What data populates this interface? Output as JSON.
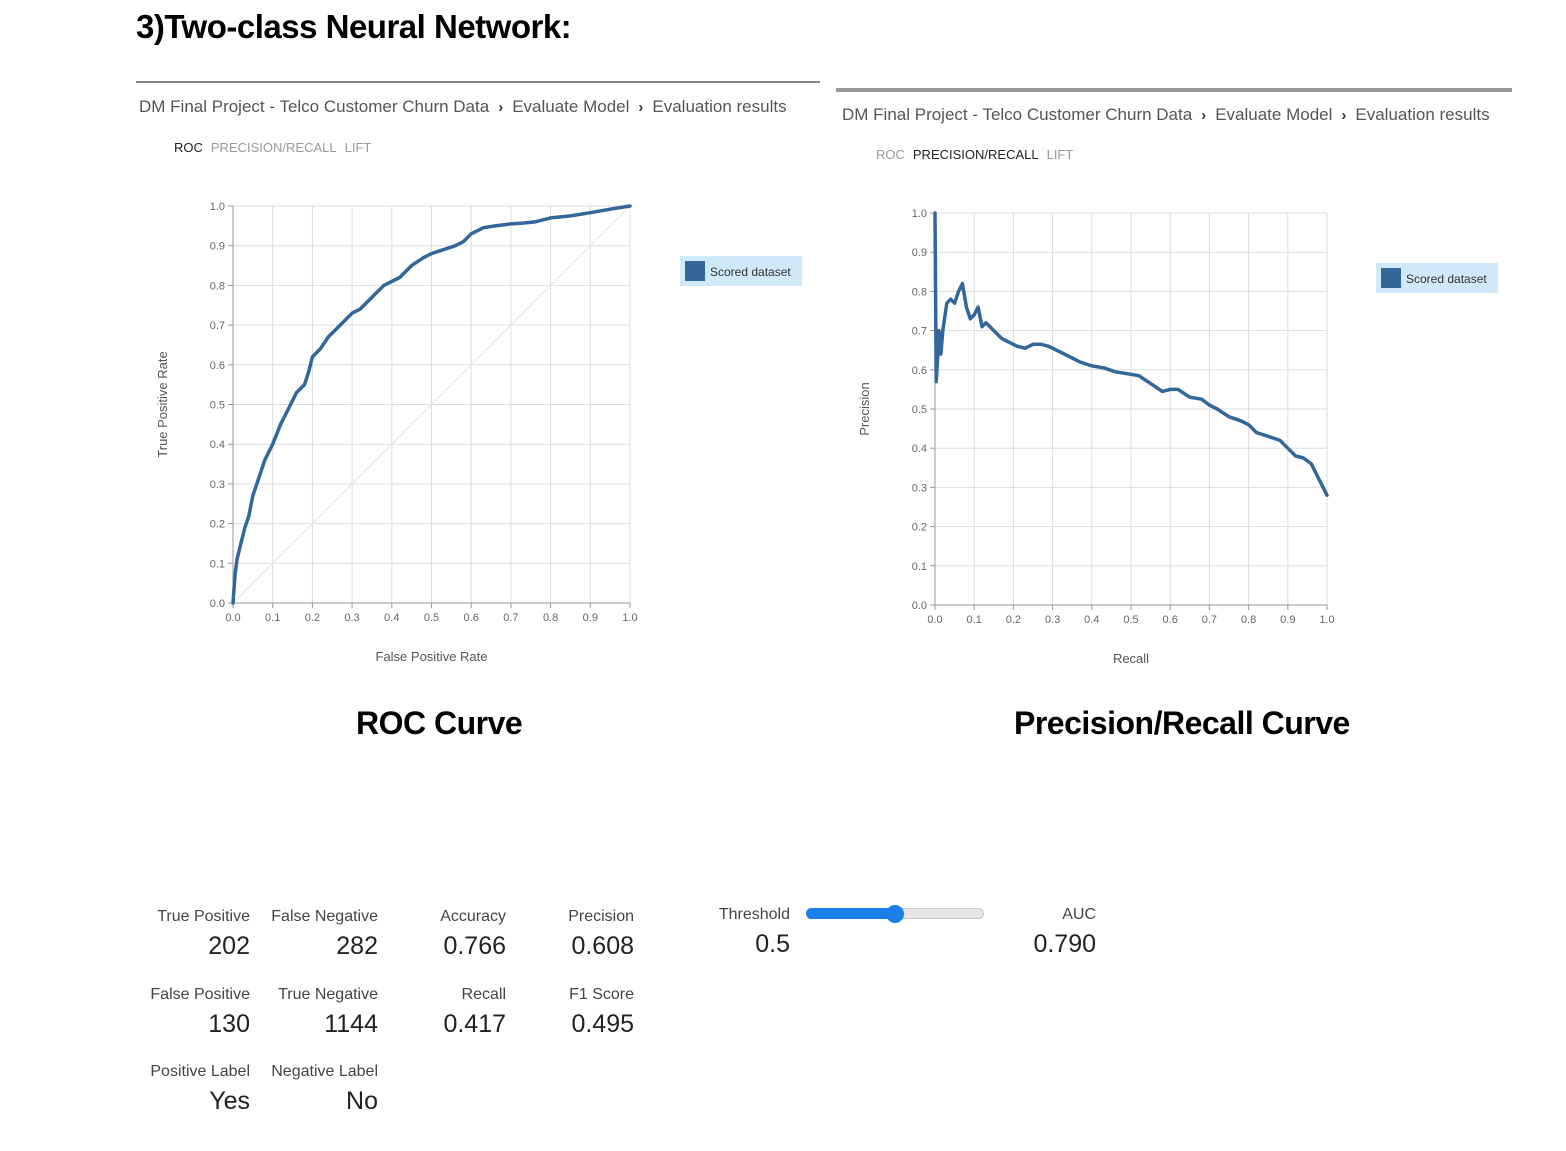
{
  "heading": "3)Two-class Neural Network:",
  "panels": [
    {
      "breadcrumb": [
        "DM Final Project - Telco Customer Churn Data",
        "Evaluate Model",
        "Evaluation results"
      ],
      "tabs": [
        "ROC",
        "PRECISION/RECALL",
        "LIFT"
      ],
      "active_tab": "ROC",
      "caption": "ROC Curve"
    },
    {
      "breadcrumb": [
        "DM Final Project - Telco Customer Churn Data",
        "Evaluate Model",
        "Evaluation results"
      ],
      "tabs": [
        "ROC",
        "PRECISION/RECALL",
        "LIFT"
      ],
      "active_tab": "PRECISION/RECALL",
      "caption": "Precision/Recall Curve"
    }
  ],
  "chart_data": [
    {
      "type": "line",
      "xlabel": "False Positive Rate",
      "ylabel": "True Positive Rate",
      "xlim": [
        0,
        1
      ],
      "ylim": [
        0,
        1
      ],
      "ticks": [
        "0.0",
        "0.1",
        "0.2",
        "0.3",
        "0.4",
        "0.5",
        "0.6",
        "0.7",
        "0.8",
        "0.9",
        "1.0"
      ],
      "grid": true,
      "legend_position": "top-right",
      "diagonal_reference": true,
      "series": [
        {
          "name": "Scored dataset",
          "color": "#336699",
          "x": [
            0.0,
            0.005,
            0.01,
            0.02,
            0.03,
            0.04,
            0.05,
            0.06,
            0.07,
            0.08,
            0.09,
            0.1,
            0.12,
            0.14,
            0.16,
            0.18,
            0.19,
            0.2,
            0.22,
            0.24,
            0.26,
            0.28,
            0.3,
            0.32,
            0.34,
            0.36,
            0.38,
            0.4,
            0.42,
            0.45,
            0.48,
            0.5,
            0.53,
            0.56,
            0.58,
            0.6,
            0.63,
            0.66,
            0.7,
            0.73,
            0.76,
            0.8,
            0.85,
            0.9,
            0.95,
            1.0
          ],
          "y": [
            0.0,
            0.07,
            0.11,
            0.15,
            0.19,
            0.22,
            0.27,
            0.3,
            0.33,
            0.36,
            0.38,
            0.4,
            0.45,
            0.49,
            0.53,
            0.55,
            0.58,
            0.62,
            0.64,
            0.67,
            0.69,
            0.71,
            0.73,
            0.74,
            0.76,
            0.78,
            0.8,
            0.81,
            0.82,
            0.85,
            0.87,
            0.88,
            0.89,
            0.9,
            0.91,
            0.93,
            0.945,
            0.95,
            0.955,
            0.957,
            0.96,
            0.97,
            0.975,
            0.983,
            0.992,
            1.0
          ]
        }
      ]
    },
    {
      "type": "line",
      "xlabel": "Recall",
      "ylabel": "Precision",
      "xlim": [
        0,
        1
      ],
      "ylim": [
        0,
        1
      ],
      "ticks": [
        "0.0",
        "0.1",
        "0.2",
        "0.3",
        "0.4",
        "0.5",
        "0.6",
        "0.7",
        "0.8",
        "0.9",
        "1.0"
      ],
      "grid": true,
      "legend_position": "top-right",
      "series": [
        {
          "name": "Scored dataset",
          "color": "#336699",
          "x": [
            0.0,
            0.003,
            0.006,
            0.01,
            0.015,
            0.02,
            0.03,
            0.04,
            0.05,
            0.06,
            0.065,
            0.07,
            0.08,
            0.09,
            0.1,
            0.11,
            0.12,
            0.13,
            0.15,
            0.17,
            0.19,
            0.21,
            0.23,
            0.25,
            0.27,
            0.29,
            0.31,
            0.33,
            0.35,
            0.37,
            0.4,
            0.43,
            0.46,
            0.49,
            0.52,
            0.55,
            0.58,
            0.6,
            0.62,
            0.65,
            0.68,
            0.7,
            0.72,
            0.75,
            0.78,
            0.8,
            0.82,
            0.85,
            0.88,
            0.9,
            0.92,
            0.94,
            0.96,
            1.0
          ],
          "y": [
            1.0,
            0.57,
            0.62,
            0.7,
            0.64,
            0.7,
            0.77,
            0.78,
            0.77,
            0.8,
            0.81,
            0.82,
            0.76,
            0.73,
            0.74,
            0.76,
            0.71,
            0.72,
            0.7,
            0.68,
            0.67,
            0.66,
            0.655,
            0.665,
            0.665,
            0.66,
            0.65,
            0.64,
            0.63,
            0.62,
            0.61,
            0.605,
            0.595,
            0.59,
            0.585,
            0.565,
            0.545,
            0.55,
            0.55,
            0.53,
            0.525,
            0.51,
            0.5,
            0.48,
            0.47,
            0.46,
            0.44,
            0.43,
            0.42,
            0.4,
            0.38,
            0.375,
            0.36,
            0.28
          ]
        }
      ]
    }
  ],
  "metrics": {
    "true_positive": {
      "label": "True Positive",
      "value": "202"
    },
    "false_negative": {
      "label": "False Negative",
      "value": "282"
    },
    "accuracy": {
      "label": "Accuracy",
      "value": "0.766"
    },
    "precision": {
      "label": "Precision",
      "value": "0.608"
    },
    "threshold": {
      "label": "Threshold",
      "value": "0.5",
      "slider_fraction": 0.5
    },
    "auc": {
      "label": "AUC",
      "value": "0.790"
    },
    "false_positive": {
      "label": "False Positive",
      "value": "130"
    },
    "true_negative": {
      "label": "True Negative",
      "value": "1144"
    },
    "recall": {
      "label": "Recall",
      "value": "0.417"
    },
    "f1": {
      "label": "F1 Score",
      "value": "0.495"
    },
    "positive_label": {
      "label": "Positive Label",
      "value": "Yes"
    },
    "negative_label": {
      "label": "Negative Label",
      "value": "No"
    }
  },
  "colors": {
    "series": "#336699",
    "legend_bg": "#cfe9f8",
    "slider": "#1a7fe8",
    "grid": "#dddddd"
  }
}
